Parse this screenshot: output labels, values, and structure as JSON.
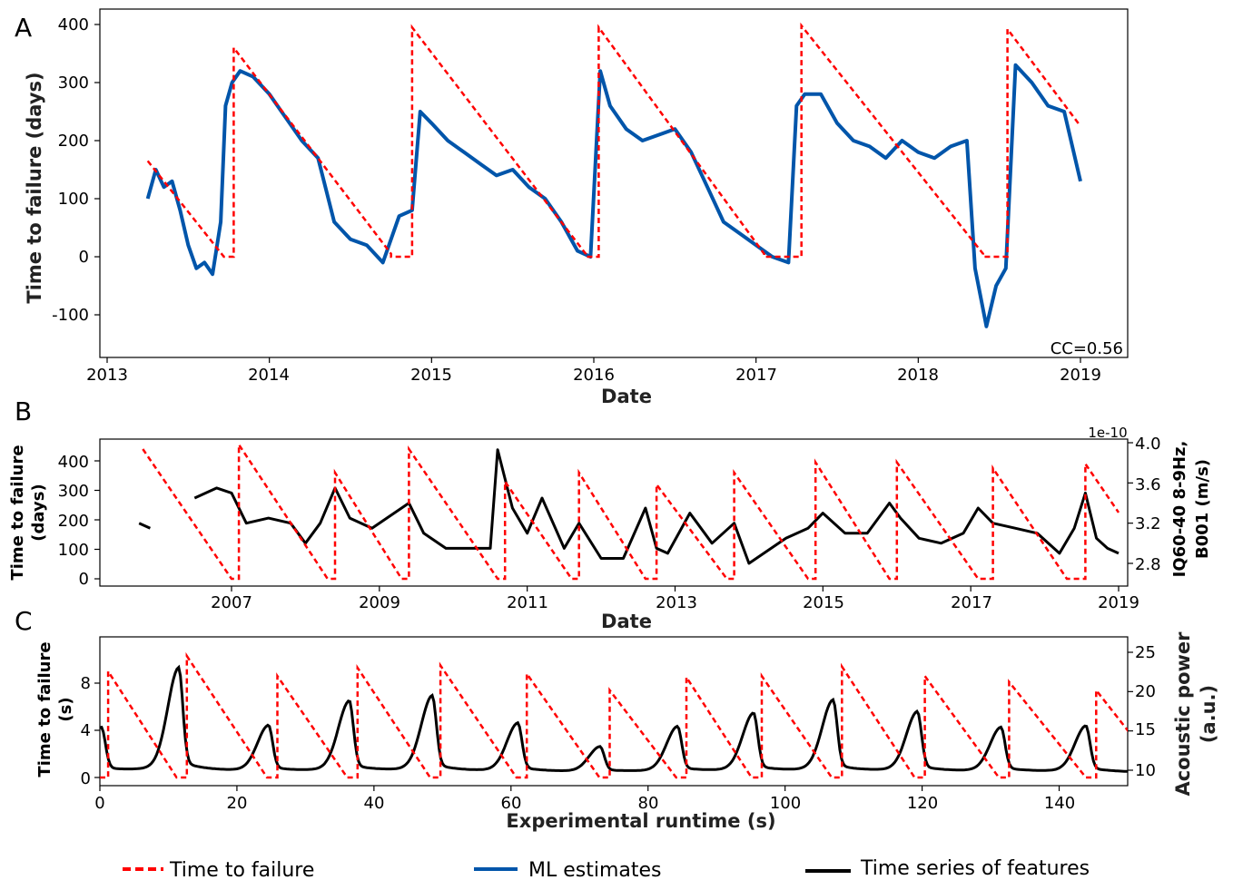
{
  "panels": {
    "A": {
      "label": "A",
      "ylabel": "Time to failure (days)",
      "xlabel": "Date",
      "annotation": "CC=0.56",
      "xticks": [
        "2013",
        "2014",
        "2015",
        "2016",
        "2017",
        "2018",
        "2019"
      ],
      "yticks": [
        "-100",
        "0",
        "100",
        "200",
        "300",
        "400"
      ]
    },
    "B": {
      "label": "B",
      "ylabel_line1": "Time to failure",
      "ylabel_line2": "(days)",
      "ylabel_right_line1": "IQ60-40 8-9Hz,",
      "ylabel_right_line2": "B001 (m/s)",
      "offset_text": "1e-10",
      "xlabel": "Date",
      "xticks": [
        "2007",
        "2009",
        "2011",
        "2013",
        "2015",
        "2017",
        "2019"
      ],
      "yticks": [
        "0",
        "100",
        "200",
        "300",
        "400"
      ],
      "yticks_right": [
        "2.8",
        "3.2",
        "3.6",
        "4.0"
      ]
    },
    "C": {
      "label": "C",
      "ylabel_line1": "Time to failure",
      "ylabel_line2": "(s)",
      "ylabel_right_line1": "Acoustic power",
      "ylabel_right_line2": "(a.u.)",
      "xlabel": "Experimental runtime (s)",
      "xticks": [
        "0",
        "20",
        "40",
        "60",
        "80",
        "100",
        "120",
        "140"
      ],
      "yticks": [
        "0",
        "4",
        "8"
      ],
      "yticks_right": [
        "10",
        "15",
        "20",
        "25"
      ]
    }
  },
  "legend": {
    "ttf": "Time to failure",
    "ml": "ML estimates",
    "feat": "Time series of features"
  },
  "colors": {
    "ttf": "#ff0000",
    "ml": "#0055aa",
    "feat": "#000000"
  },
  "chart_data": [
    {
      "type": "line",
      "panel": "A",
      "xlabel": "Date",
      "ylabel": "Time to failure (days)",
      "xlim": [
        2012.95,
        2019.3
      ],
      "ylim": [
        -170,
        425
      ],
      "series": [
        {
          "name": "Time to failure",
          "style": "dashed",
          "x": [
            2013.25,
            2013.72,
            2013.72,
            2013.78,
            2013.78,
            2014.75,
            2014.75,
            2014.88,
            2014.88,
            2015.95,
            2015.95,
            2016.03,
            2016.03,
            2017.05,
            2017.05,
            2017.28,
            2017.28,
            2018.4,
            2018.4,
            2018.55,
            2018.55,
            2019.0
          ],
          "y": [
            165,
            0,
            0,
            0,
            360,
            5,
            0,
            0,
            395,
            5,
            0,
            0,
            395,
            5,
            0,
            0,
            398,
            5,
            0,
            0,
            392,
            225
          ]
        },
        {
          "name": "ML estimates",
          "x": [
            2013.25,
            2013.3,
            2013.35,
            2013.4,
            2013.45,
            2013.5,
            2013.55,
            2013.6,
            2013.65,
            2013.7,
            2013.73,
            2013.77,
            2013.82,
            2013.9,
            2014.0,
            2014.1,
            2014.2,
            2014.3,
            2014.4,
            2014.5,
            2014.6,
            2014.7,
            2014.8,
            2014.88,
            2014.93,
            2015.0,
            2015.1,
            2015.2,
            2015.3,
            2015.4,
            2015.5,
            2015.6,
            2015.7,
            2015.8,
            2015.9,
            2015.98,
            2016.04,
            2016.1,
            2016.2,
            2016.3,
            2016.4,
            2016.5,
            2016.6,
            2016.7,
            2016.8,
            2016.9,
            2017.0,
            2017.1,
            2017.2,
            2017.25,
            2017.3,
            2017.4,
            2017.5,
            2017.6,
            2017.7,
            2017.8,
            2017.9,
            2018.0,
            2018.1,
            2018.2,
            2018.3,
            2018.35,
            2018.42,
            2018.48,
            2018.54,
            2018.6,
            2018.7,
            2018.8,
            2018.9,
            2019.0
          ],
          "y": [
            100,
            150,
            120,
            130,
            80,
            20,
            -20,
            -10,
            -30,
            60,
            260,
            300,
            320,
            310,
            280,
            240,
            200,
            170,
            60,
            30,
            20,
            -10,
            70,
            80,
            250,
            230,
            200,
            180,
            160,
            140,
            150,
            120,
            100,
            60,
            10,
            0,
            320,
            260,
            220,
            200,
            210,
            220,
            180,
            120,
            60,
            40,
            20,
            0,
            -10,
            260,
            280,
            280,
            230,
            200,
            190,
            170,
            200,
            180,
            170,
            190,
            200,
            -20,
            -120,
            -50,
            -20,
            330,
            300,
            260,
            250,
            130
          ]
        },
        {
          "name": "annotation",
          "style": "text",
          "text": "CC=0.56"
        }
      ]
    },
    {
      "type": "line",
      "panel": "B",
      "xlabel": "Date",
      "ylabel": "Time to failure (days)",
      "ylabel_right": "IQ60-40 8-9Hz, B001 (m/s)",
      "xlim": [
        2005.3,
        2019.2
      ],
      "ylim": [
        -20,
        480
      ],
      "ylim_right": [
        2.6,
        4.0
      ],
      "series": [
        {
          "name": "Time to failure",
          "style": "dashed",
          "x": [
            2005.8,
            2007.0,
            2007.0,
            2007.1,
            2007.1,
            2008.3,
            2008.3,
            2008.4,
            2008.4,
            2009.3,
            2009.3,
            2009.4,
            2009.4,
            2010.6,
            2010.6,
            2010.7,
            2010.7,
            2011.6,
            2011.6,
            2011.7,
            2011.7,
            2012.6,
            2012.6,
            2012.75,
            2012.75,
            2013.7,
            2013.7,
            2013.8,
            2013.8,
            2014.8,
            2014.8,
            2014.9,
            2014.9,
            2015.9,
            2015.9,
            2016.0,
            2016.0,
            2017.1,
            2017.1,
            2017.3,
            2017.3,
            2018.3,
            2018.3,
            2018.55,
            2018.55,
            2019.0
          ],
          "y": [
            440,
            0,
            0,
            0,
            455,
            0,
            0,
            0,
            360,
            0,
            0,
            0,
            440,
            0,
            0,
            0,
            330,
            0,
            0,
            0,
            360,
            0,
            0,
            0,
            320,
            0,
            0,
            0,
            360,
            0,
            0,
            0,
            395,
            0,
            0,
            0,
            395,
            0,
            0,
            0,
            375,
            0,
            0,
            0,
            390,
            225
          ]
        },
        {
          "name": "Time series of features",
          "axis": "right",
          "x": [
            2005.75,
            2005.9,
            2006.5,
            2006.8,
            2007.0,
            2007.2,
            2007.5,
            2007.8,
            2008.0,
            2008.2,
            2008.4,
            2008.6,
            2008.9,
            2009.1,
            2009.4,
            2009.6,
            2009.9,
            2010.2,
            2010.5,
            2010.6,
            2010.8,
            2011.0,
            2011.2,
            2011.5,
            2011.7,
            2012.0,
            2012.3,
            2012.6,
            2012.75,
            2012.9,
            2013.2,
            2013.5,
            2013.8,
            2014.0,
            2014.2,
            2014.5,
            2014.8,
            2015.0,
            2015.3,
            2015.6,
            2015.9,
            2016.05,
            2016.3,
            2016.6,
            2016.9,
            2017.1,
            2017.3,
            2017.6,
            2017.9,
            2018.2,
            2018.4,
            2018.55,
            2018.7,
            2018.85,
            2019.0
          ],
          "y": [
            3.2,
            3.15,
            3.45,
            3.55,
            3.5,
            3.2,
            3.25,
            3.2,
            3.0,
            3.2,
            3.55,
            3.25,
            3.15,
            3.25,
            3.4,
            3.1,
            2.95,
            2.95,
            2.95,
            3.93,
            3.35,
            3.1,
            3.45,
            2.95,
            3.2,
            2.85,
            2.85,
            3.35,
            2.95,
            2.9,
            3.3,
            3.0,
            3.2,
            2.8,
            2.9,
            3.05,
            3.15,
            3.3,
            3.1,
            3.1,
            3.4,
            3.25,
            3.05,
            3.0,
            3.1,
            3.35,
            3.2,
            3.15,
            3.1,
            2.9,
            3.15,
            3.5,
            3.05,
            2.95,
            2.9
          ]
        }
      ]
    },
    {
      "type": "line",
      "panel": "C",
      "xlabel": "Experimental runtime (s)",
      "ylabel": "Time to failure (s)",
      "ylabel_right": "Acoustic power (a.u.)",
      "xlim": [
        0,
        150
      ],
      "ylim": [
        -0.4,
        11.8
      ],
      "ylim_right": [
        8.5,
        26.5
      ],
      "series": [
        {
          "name": "Time to failure",
          "style": "dashed",
          "failures": [
            1.2,
            12.7,
            25.9,
            37.6,
            49.7,
            62.3,
            74.4,
            85.6,
            96.6,
            108.3,
            120.4,
            132.7,
            145.4
          ],
          "peaks": [
            9.0,
            10.3,
            8.6,
            9.3,
            9.5,
            8.8,
            7.4,
            8.5,
            8.6,
            9.4,
            8.6,
            8.1,
            7.4
          ]
        },
        {
          "name": "Time series of features",
          "axis": "right",
          "peak_times": [
            0.2,
            11.5,
            24.6,
            36.4,
            48.5,
            61.0,
            73.0,
            84.3,
            95.4,
            107.0,
            119.3,
            131.5,
            143.9
          ],
          "peak_values": [
            14.8,
            21.6,
            15.0,
            17.8,
            18.4,
            15.3,
            12.6,
            14.9,
            16.4,
            17.9,
            16.6,
            14.8,
            15.0
          ],
          "baseline": 9.7
        }
      ]
    }
  ]
}
